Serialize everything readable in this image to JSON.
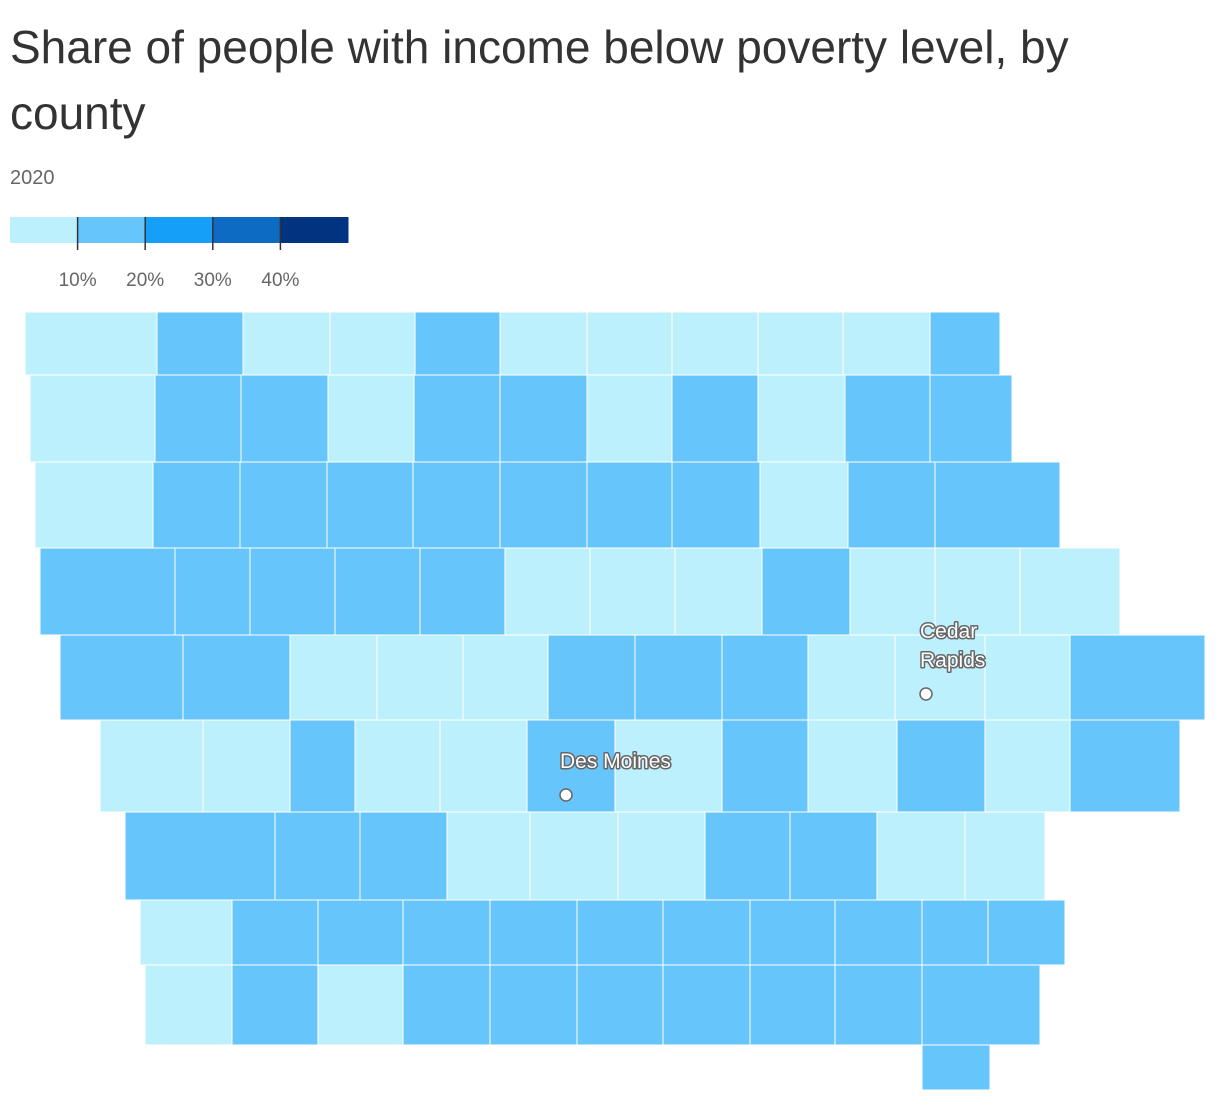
{
  "title": "Share of people with income below poverty level, by county",
  "subtitle": "2020",
  "legend": {
    "colors": [
      "#bdf0fd",
      "#66c6fb",
      "#169ff9",
      "#0d6bc4",
      "#003380"
    ],
    "ticks": [
      {
        "value": 10,
        "label": "10%"
      },
      {
        "value": 20,
        "label": "20%"
      },
      {
        "value": 30,
        "label": "30%"
      },
      {
        "value": 40,
        "label": "40%"
      }
    ],
    "range": [
      0,
      50
    ]
  },
  "cities": [
    {
      "name": "Des Moines"
    },
    {
      "name": "Cedar Rapids"
    }
  ],
  "county_levels": [
    [
      0,
      1,
      0,
      0,
      1,
      0,
      0,
      0,
      0,
      0,
      1
    ],
    [
      0,
      1,
      1,
      0,
      1,
      1,
      0,
      1,
      0,
      1,
      1
    ],
    [
      0,
      1,
      1,
      1,
      1,
      1,
      1,
      1,
      0,
      1,
      1
    ],
    [
      1,
      1,
      1,
      1,
      1,
      0,
      0,
      0,
      1,
      0,
      0,
      0
    ],
    [
      1,
      1,
      0,
      0,
      0,
      1,
      1,
      1,
      0,
      0,
      0,
      1
    ],
    [
      0,
      0,
      1,
      0,
      0,
      1,
      0,
      1,
      0,
      1,
      0,
      1
    ],
    [
      1,
      1,
      1,
      0,
      0,
      0,
      1,
      1,
      0,
      0
    ],
    [
      0,
      1,
      1,
      1,
      1,
      1,
      1,
      1,
      1,
      1,
      1
    ],
    [
      0,
      1,
      0,
      1,
      1,
      1,
      1,
      1,
      1,
      1
    ]
  ]
}
